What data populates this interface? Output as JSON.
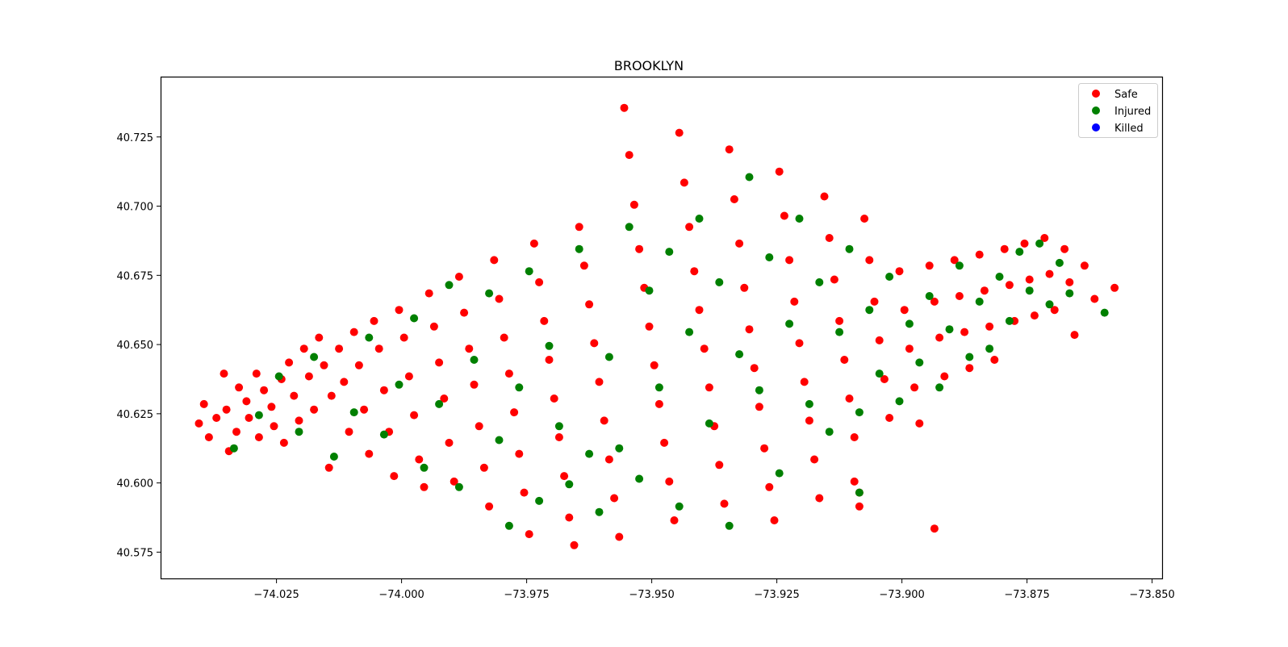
{
  "chart_data": {
    "type": "scatter",
    "title": "BROOKLYN",
    "xlabel": "",
    "ylabel": "",
    "xlim": [
      -74.048,
      -73.848
    ],
    "ylim": [
      40.5655,
      40.7465
    ],
    "xticks": [
      -74.025,
      -74.0,
      -73.975,
      -73.95,
      -73.925,
      -73.9,
      -73.875,
      -73.85
    ],
    "xtick_labels": [
      "−74.025",
      "−74.000",
      "−73.975",
      "−73.950",
      "−73.925",
      "−73.900",
      "−73.875",
      "−73.850"
    ],
    "yticks": [
      40.575,
      40.6,
      40.625,
      40.65,
      40.675,
      40.7,
      40.725
    ],
    "ytick_labels": [
      "40.575",
      "40.600",
      "40.625",
      "40.650",
      "40.675",
      "40.700",
      "40.725"
    ],
    "grid": false,
    "legend_position": "top-right",
    "series": [
      {
        "name": "Safe",
        "color": "#ff0000",
        "points": [
          [
            -74.0395,
            40.6285
          ],
          [
            -74.0405,
            40.6215
          ],
          [
            -74.0385,
            40.6165
          ],
          [
            -74.037,
            40.6235
          ],
          [
            -74.0355,
            40.6395
          ],
          [
            -74.035,
            40.6265
          ],
          [
            -74.0345,
            40.6115
          ],
          [
            -74.033,
            40.6185
          ],
          [
            -74.0325,
            40.6345
          ],
          [
            -74.031,
            40.6295
          ],
          [
            -74.0305,
            40.6235
          ],
          [
            -74.029,
            40.6395
          ],
          [
            -74.0285,
            40.6165
          ],
          [
            -74.0275,
            40.6335
          ],
          [
            -74.026,
            40.6275
          ],
          [
            -74.0255,
            40.6205
          ],
          [
            -74.024,
            40.6375
          ],
          [
            -74.0235,
            40.6145
          ],
          [
            -74.0225,
            40.6435
          ],
          [
            -74.0215,
            40.6315
          ],
          [
            -74.0205,
            40.6225
          ],
          [
            -74.0195,
            40.6485
          ],
          [
            -74.0185,
            40.6385
          ],
          [
            -74.0175,
            40.6265
          ],
          [
            -74.0165,
            40.6525
          ],
          [
            -74.0155,
            40.6425
          ],
          [
            -74.0145,
            40.6055
          ],
          [
            -74.014,
            40.6315
          ],
          [
            -74.0125,
            40.6485
          ],
          [
            -74.0115,
            40.6365
          ],
          [
            -74.0105,
            40.6185
          ],
          [
            -74.0095,
            40.6545
          ],
          [
            -74.0085,
            40.6425
          ],
          [
            -74.0075,
            40.6265
          ],
          [
            -74.0065,
            40.6105
          ],
          [
            -74.0055,
            40.6585
          ],
          [
            -74.0045,
            40.6485
          ],
          [
            -74.0035,
            40.6335
          ],
          [
            -74.0025,
            40.6185
          ],
          [
            -74.0015,
            40.6025
          ],
          [
            -74.0005,
            40.6625
          ],
          [
            -73.9995,
            40.6525
          ],
          [
            -73.9985,
            40.6385
          ],
          [
            -73.9975,
            40.6245
          ],
          [
            -73.9965,
            40.6085
          ],
          [
            -73.9955,
            40.5985
          ],
          [
            -73.9945,
            40.6685
          ],
          [
            -73.9935,
            40.6565
          ],
          [
            -73.9925,
            40.6435
          ],
          [
            -73.9915,
            40.6305
          ],
          [
            -73.9905,
            40.6145
          ],
          [
            -73.9895,
            40.6005
          ],
          [
            -73.9885,
            40.6745
          ],
          [
            -73.9875,
            40.6615
          ],
          [
            -73.9865,
            40.6485
          ],
          [
            -73.9855,
            40.6355
          ],
          [
            -73.9845,
            40.6205
          ],
          [
            -73.9835,
            40.6055
          ],
          [
            -73.9825,
            40.5915
          ],
          [
            -73.9815,
            40.6805
          ],
          [
            -73.9805,
            40.6665
          ],
          [
            -73.9795,
            40.6525
          ],
          [
            -73.9785,
            40.6395
          ],
          [
            -73.9775,
            40.6255
          ],
          [
            -73.9765,
            40.6105
          ],
          [
            -73.9755,
            40.5965
          ],
          [
            -73.9745,
            40.5815
          ],
          [
            -73.9735,
            40.6865
          ],
          [
            -73.9725,
            40.6725
          ],
          [
            -73.9715,
            40.6585
          ],
          [
            -73.9705,
            40.6445
          ],
          [
            -73.9695,
            40.6305
          ],
          [
            -73.9685,
            40.6165
          ],
          [
            -73.9675,
            40.6025
          ],
          [
            -73.9665,
            40.5875
          ],
          [
            -73.9655,
            40.5775
          ],
          [
            -73.9645,
            40.6925
          ],
          [
            -73.9635,
            40.6785
          ],
          [
            -73.9625,
            40.6645
          ],
          [
            -73.9615,
            40.6505
          ],
          [
            -73.9605,
            40.6365
          ],
          [
            -73.9595,
            40.6225
          ],
          [
            -73.9585,
            40.6085
          ],
          [
            -73.9575,
            40.5945
          ],
          [
            -73.9565,
            40.5805
          ],
          [
            -73.9555,
            40.7355
          ],
          [
            -73.9545,
            40.7185
          ],
          [
            -73.9535,
            40.7005
          ],
          [
            -73.9525,
            40.6845
          ],
          [
            -73.9515,
            40.6705
          ],
          [
            -73.9505,
            40.6565
          ],
          [
            -73.9495,
            40.6425
          ],
          [
            -73.9485,
            40.6285
          ],
          [
            -73.9475,
            40.6145
          ],
          [
            -73.9465,
            40.6005
          ],
          [
            -73.9455,
            40.5865
          ],
          [
            -73.9445,
            40.7265
          ],
          [
            -73.9435,
            40.7085
          ],
          [
            -73.9425,
            40.6925
          ],
          [
            -73.9415,
            40.6765
          ],
          [
            -73.9405,
            40.6625
          ],
          [
            -73.9395,
            40.6485
          ],
          [
            -73.9385,
            40.6345
          ],
          [
            -73.9375,
            40.6205
          ],
          [
            -73.9365,
            40.6065
          ],
          [
            -73.9355,
            40.5925
          ],
          [
            -73.9345,
            40.7205
          ],
          [
            -73.9335,
            40.7025
          ],
          [
            -73.9325,
            40.6865
          ],
          [
            -73.9315,
            40.6705
          ],
          [
            -73.9305,
            40.6555
          ],
          [
            -73.9295,
            40.6415
          ],
          [
            -73.9285,
            40.6275
          ],
          [
            -73.9275,
            40.6125
          ],
          [
            -73.9265,
            40.5985
          ],
          [
            -73.9255,
            40.5865
          ],
          [
            -73.9245,
            40.7125
          ],
          [
            -73.9235,
            40.6965
          ],
          [
            -73.9225,
            40.6805
          ],
          [
            -73.9215,
            40.6655
          ],
          [
            -73.9205,
            40.6505
          ],
          [
            -73.9195,
            40.6365
          ],
          [
            -73.9185,
            40.6225
          ],
          [
            -73.9175,
            40.6085
          ],
          [
            -73.9165,
            40.5945
          ],
          [
            -73.9155,
            40.7035
          ],
          [
            -73.9145,
            40.6885
          ],
          [
            -73.9135,
            40.6735
          ],
          [
            -73.9125,
            40.6585
          ],
          [
            -73.9115,
            40.6445
          ],
          [
            -73.9105,
            40.6305
          ],
          [
            -73.9095,
            40.6165
          ],
          [
            -73.9085,
            40.5915
          ],
          [
            -73.9075,
            40.6955
          ],
          [
            -73.9065,
            40.6805
          ],
          [
            -73.9055,
            40.6655
          ],
          [
            -73.9045,
            40.6515
          ],
          [
            -73.9035,
            40.6375
          ],
          [
            -73.9025,
            40.6235
          ],
          [
            -73.9005,
            40.6765
          ],
          [
            -73.8995,
            40.6625
          ],
          [
            -73.8985,
            40.6485
          ],
          [
            -73.8975,
            40.6345
          ],
          [
            -73.8965,
            40.6215
          ],
          [
            -73.8945,
            40.6785
          ],
          [
            -73.8935,
            40.6655
          ],
          [
            -73.8925,
            40.6525
          ],
          [
            -73.8915,
            40.6385
          ],
          [
            -73.8895,
            40.6805
          ],
          [
            -73.8885,
            40.6675
          ],
          [
            -73.8875,
            40.6545
          ],
          [
            -73.8865,
            40.6415
          ],
          [
            -73.8845,
            40.6825
          ],
          [
            -73.8835,
            40.6695
          ],
          [
            -73.8825,
            40.6565
          ],
          [
            -73.8815,
            40.6445
          ],
          [
            -73.8795,
            40.6845
          ],
          [
            -73.8785,
            40.6715
          ],
          [
            -73.8775,
            40.6585
          ],
          [
            -73.8755,
            40.6865
          ],
          [
            -73.8745,
            40.6735
          ],
          [
            -73.8735,
            40.6605
          ],
          [
            -73.8715,
            40.6885
          ],
          [
            -73.8705,
            40.6755
          ],
          [
            -73.8695,
            40.6625
          ],
          [
            -73.8675,
            40.6845
          ],
          [
            -73.8665,
            40.6725
          ],
          [
            -73.8655,
            40.6535
          ],
          [
            -73.8635,
            40.6785
          ],
          [
            -73.8615,
            40.6665
          ],
          [
            -73.8575,
            40.6705
          ],
          [
            -73.8935,
            40.5835
          ],
          [
            -73.9095,
            40.6005
          ],
          [
            -73.9085,
            40.5965
          ]
        ]
      },
      {
        "name": "Injured",
        "color": "#008000",
        "points": [
          [
            -74.0335,
            40.6125
          ],
          [
            -74.0285,
            40.6245
          ],
          [
            -74.0245,
            40.6385
          ],
          [
            -74.0205,
            40.6185
          ],
          [
            -74.0175,
            40.6455
          ],
          [
            -74.0135,
            40.6095
          ],
          [
            -74.0095,
            40.6255
          ],
          [
            -74.0065,
            40.6525
          ],
          [
            -74.0035,
            40.6175
          ],
          [
            -74.0005,
            40.6355
          ],
          [
            -73.9975,
            40.6595
          ],
          [
            -73.9955,
            40.6055
          ],
          [
            -73.9925,
            40.6285
          ],
          [
            -73.9905,
            40.6715
          ],
          [
            -73.9885,
            40.5985
          ],
          [
            -73.9855,
            40.6445
          ],
          [
            -73.9825,
            40.6685
          ],
          [
            -73.9805,
            40.6155
          ],
          [
            -73.9785,
            40.5845
          ],
          [
            -73.9765,
            40.6345
          ],
          [
            -73.9745,
            40.6765
          ],
          [
            -73.9725,
            40.5935
          ],
          [
            -73.9705,
            40.6495
          ],
          [
            -73.9685,
            40.6205
          ],
          [
            -73.9665,
            40.5995
          ],
          [
            -73.9645,
            40.6845
          ],
          [
            -73.9625,
            40.6105
          ],
          [
            -73.9605,
            40.5895
          ],
          [
            -73.9585,
            40.6455
          ],
          [
            -73.9565,
            40.6125
          ],
          [
            -73.9545,
            40.6925
          ],
          [
            -73.9525,
            40.6015
          ],
          [
            -73.9505,
            40.6695
          ],
          [
            -73.9485,
            40.6345
          ],
          [
            -73.9465,
            40.6835
          ],
          [
            -73.9445,
            40.5915
          ],
          [
            -73.9425,
            40.6545
          ],
          [
            -73.9405,
            40.6955
          ],
          [
            -73.9385,
            40.6215
          ],
          [
            -73.9365,
            40.6725
          ],
          [
            -73.9345,
            40.5845
          ],
          [
            -73.9325,
            40.6465
          ],
          [
            -73.9305,
            40.7105
          ],
          [
            -73.9285,
            40.6335
          ],
          [
            -73.9265,
            40.6815
          ],
          [
            -73.9245,
            40.6035
          ],
          [
            -73.9225,
            40.6575
          ],
          [
            -73.9205,
            40.6955
          ],
          [
            -73.9185,
            40.6285
          ],
          [
            -73.9165,
            40.6725
          ],
          [
            -73.9145,
            40.6185
          ],
          [
            -73.9125,
            40.6545
          ],
          [
            -73.9105,
            40.6845
          ],
          [
            -73.9085,
            40.6255
          ],
          [
            -73.9065,
            40.6625
          ],
          [
            -73.9045,
            40.6395
          ],
          [
            -73.9025,
            40.6745
          ],
          [
            -73.9005,
            40.6295
          ],
          [
            -73.8985,
            40.6575
          ],
          [
            -73.8965,
            40.6435
          ],
          [
            -73.8945,
            40.6675
          ],
          [
            -73.8925,
            40.6345
          ],
          [
            -73.8905,
            40.6555
          ],
          [
            -73.8885,
            40.6785
          ],
          [
            -73.8865,
            40.6455
          ],
          [
            -73.8845,
            40.6655
          ],
          [
            -73.8825,
            40.6485
          ],
          [
            -73.8805,
            40.6745
          ],
          [
            -73.8785,
            40.6585
          ],
          [
            -73.8765,
            40.6835
          ],
          [
            -73.8745,
            40.6695
          ],
          [
            -73.8725,
            40.6865
          ],
          [
            -73.8705,
            40.6645
          ],
          [
            -73.8685,
            40.6795
          ],
          [
            -73.8665,
            40.6685
          ],
          [
            -73.8595,
            40.6615
          ],
          [
            -73.9085,
            40.5965
          ]
        ]
      },
      {
        "name": "Killed",
        "color": "#0000ff",
        "points": []
      }
    ]
  }
}
